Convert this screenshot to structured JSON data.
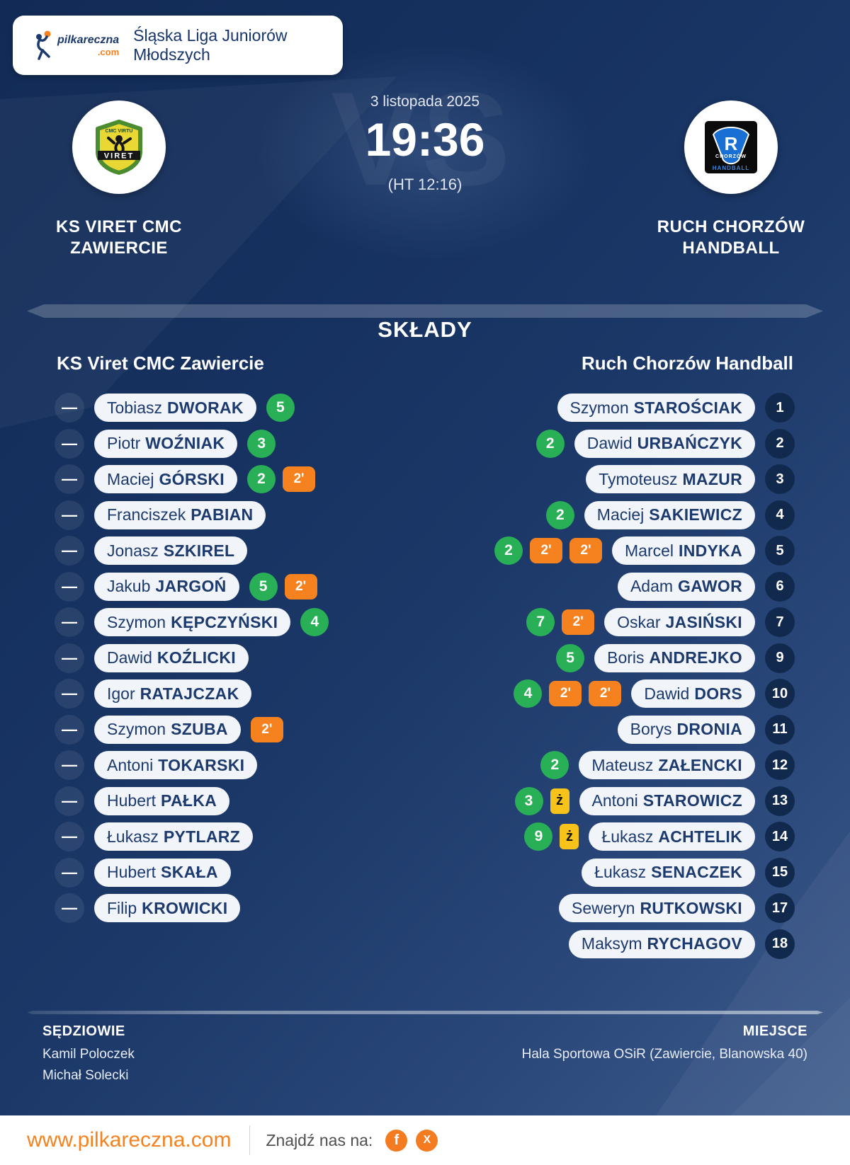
{
  "brand": {
    "logo": {
      "text": "pilkareczna",
      "tld": ".com"
    }
  },
  "header": {
    "league": "Śląska Liga Juniorów Młodszych"
  },
  "match": {
    "date": "3 listopada 2025",
    "score": "19:36",
    "halftime": "(HT 12:16)",
    "vs": "VS",
    "home_team": {
      "line1": "KS VIRET CMC",
      "line2": "ZAWIERCIE"
    },
    "away_team": {
      "line1": "RUCH CHORZÓW",
      "line2": "HANDBALL"
    }
  },
  "logos": {
    "home": {
      "top": "CMC VIRTU",
      "banner": "VIRET"
    },
    "away": {
      "letter": "R",
      "city": "CHORZÓW",
      "sport": "HANDBALL"
    }
  },
  "lineups": {
    "title": "SKŁADY",
    "home_header": "KS Viret CMC Zawiercie",
    "away_header": "Ruch Chorzów Handball",
    "badge_labels": {
      "suspension": "2'",
      "yellow": "ż"
    },
    "home": [
      {
        "number": "—",
        "first": "Tobiasz",
        "last": "DWORAK",
        "goals": "5",
        "susp": 0,
        "yellow": false
      },
      {
        "number": "—",
        "first": "Piotr",
        "last": "WOŹNIAK",
        "goals": "3",
        "susp": 0,
        "yellow": false
      },
      {
        "number": "—",
        "first": "Maciej",
        "last": "GÓRSKI",
        "goals": "2",
        "susp": 1,
        "yellow": false
      },
      {
        "number": "—",
        "first": "Franciszek",
        "last": "PABIAN",
        "goals": null,
        "susp": 0,
        "yellow": false
      },
      {
        "number": "—",
        "first": "Jonasz",
        "last": "SZKIREL",
        "goals": null,
        "susp": 0,
        "yellow": false
      },
      {
        "number": "—",
        "first": "Jakub",
        "last": "JARGOŃ",
        "goals": "5",
        "susp": 1,
        "yellow": false
      },
      {
        "number": "—",
        "first": "Szymon",
        "last": "KĘPCZYŃSKI",
        "goals": "4",
        "susp": 0,
        "yellow": false
      },
      {
        "number": "—",
        "first": "Dawid",
        "last": "KOŹLICKI",
        "goals": null,
        "susp": 0,
        "yellow": false
      },
      {
        "number": "—",
        "first": "Igor",
        "last": "RATAJCZAK",
        "goals": null,
        "susp": 0,
        "yellow": false
      },
      {
        "number": "—",
        "first": "Szymon",
        "last": "SZUBA",
        "goals": null,
        "susp": 1,
        "yellow": false
      },
      {
        "number": "—",
        "first": "Antoni",
        "last": "TOKARSKI",
        "goals": null,
        "susp": 0,
        "yellow": false
      },
      {
        "number": "—",
        "first": "Hubert",
        "last": "PAŁKA",
        "goals": null,
        "susp": 0,
        "yellow": false
      },
      {
        "number": "—",
        "first": "Łukasz",
        "last": "PYTLARZ",
        "goals": null,
        "susp": 0,
        "yellow": false
      },
      {
        "number": "—",
        "first": "Hubert",
        "last": "SKAŁA",
        "goals": null,
        "susp": 0,
        "yellow": false
      },
      {
        "number": "—",
        "first": "Filip",
        "last": "KROWICKI",
        "goals": null,
        "susp": 0,
        "yellow": false
      }
    ],
    "away": [
      {
        "number": "1",
        "first": "Szymon",
        "last": "STAROŚCIAK",
        "goals": null,
        "susp": 0,
        "yellow": false
      },
      {
        "number": "2",
        "first": "Dawid",
        "last": "URBAŃCZYK",
        "goals": "2",
        "susp": 0,
        "yellow": false
      },
      {
        "number": "3",
        "first": "Tymoteusz",
        "last": "MAZUR",
        "goals": null,
        "susp": 0,
        "yellow": false
      },
      {
        "number": "4",
        "first": "Maciej",
        "last": "SAKIEWICZ",
        "goals": "2",
        "susp": 0,
        "yellow": false
      },
      {
        "number": "5",
        "first": "Marcel",
        "last": "INDYKA",
        "goals": "2",
        "susp": 2,
        "yellow": false
      },
      {
        "number": "6",
        "first": "Adam",
        "last": "GAWOR",
        "goals": null,
        "susp": 0,
        "yellow": false
      },
      {
        "number": "7",
        "first": "Oskar",
        "last": "JASIŃSKI",
        "goals": "7",
        "susp": 1,
        "yellow": false
      },
      {
        "number": "9",
        "first": "Boris",
        "last": "ANDREJKO",
        "goals": "5",
        "susp": 0,
        "yellow": false
      },
      {
        "number": "10",
        "first": "Dawid",
        "last": "DORS",
        "goals": "4",
        "susp": 2,
        "yellow": false
      },
      {
        "number": "11",
        "first": "Borys",
        "last": "DRONIA",
        "goals": null,
        "susp": 0,
        "yellow": false
      },
      {
        "number": "12",
        "first": "Mateusz",
        "last": "ZAŁENCKI",
        "goals": "2",
        "susp": 0,
        "yellow": false
      },
      {
        "number": "13",
        "first": "Antoni",
        "last": "STAROWICZ",
        "goals": "3",
        "susp": 0,
        "yellow": true
      },
      {
        "number": "14",
        "first": "Łukasz",
        "last": "ACHTELIK",
        "goals": "9",
        "susp": 0,
        "yellow": true
      },
      {
        "number": "15",
        "first": "Łukasz",
        "last": "SENACZEK",
        "goals": null,
        "susp": 0,
        "yellow": false
      },
      {
        "number": "17",
        "first": "Seweryn",
        "last": "RUTKOWSKI",
        "goals": null,
        "susp": 0,
        "yellow": false
      },
      {
        "number": "18",
        "first": "Maksym",
        "last": "RYCHAGOV",
        "goals": null,
        "susp": 0,
        "yellow": false
      }
    ]
  },
  "footer": {
    "referees_label": "SĘDZIOWIE",
    "referees": [
      "Kamil Poloczek",
      "Michał Solecki"
    ],
    "venue_label": "MIEJSCE",
    "venue": "Hala Sportowa OSiR (Zawiercie, Blanowska 40)"
  },
  "bottom": {
    "website": "www.pilkareczna.com",
    "find_us": "Znajdź nas na:",
    "facebook": "f",
    "x": "X"
  },
  "colors": {
    "background_navy": "#16315f",
    "pill_background": "#f1f4f9",
    "navy_text": "#1c3a6e",
    "goal_green": "#29b057",
    "suspension_orange": "#f6821f",
    "yellow_card": "#f7c31b",
    "brand_orange": "#f5821f",
    "away_number_circle": "#12294e"
  }
}
